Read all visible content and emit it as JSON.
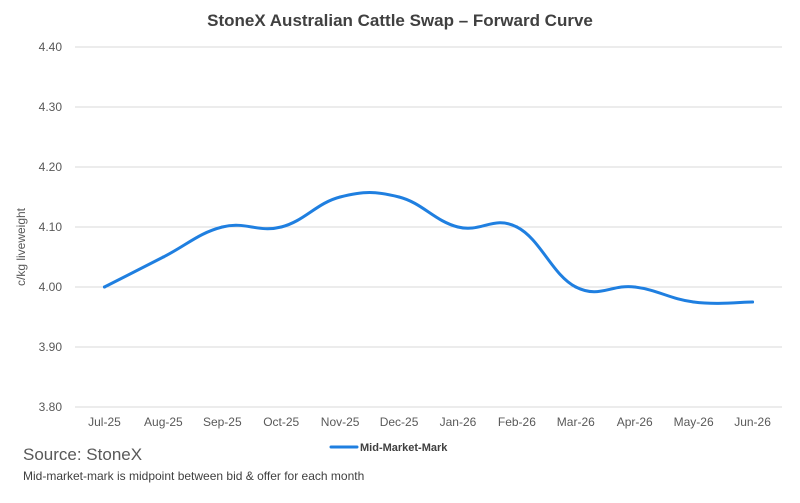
{
  "chart_data": {
    "type": "line",
    "title": "StoneX Australian Cattle Swap – Forward Curve",
    "ylabel": "c/kg liveweight",
    "xlabel": "",
    "categories": [
      "Jul-25",
      "Aug-25",
      "Sep-25",
      "Oct-25",
      "Nov-25",
      "Dec-25",
      "Jan-26",
      "Feb-26",
      "Mar-26",
      "Apr-26",
      "May-26",
      "Jun-26"
    ],
    "series": [
      {
        "name": "Mid-Market-Mark",
        "color": "#1f7fe0",
        "values": [
          4.0,
          4.05,
          4.1,
          4.1,
          4.15,
          4.15,
          4.1,
          4.1,
          4.0,
          4.0,
          3.975,
          3.975
        ]
      }
    ],
    "ylim": [
      3.8,
      4.4
    ],
    "yticks": [
      "3.80",
      "3.90",
      "4.00",
      "4.10",
      "4.20",
      "4.30",
      "4.40"
    ],
    "grid": true,
    "smooth": true,
    "legend": "bottom-center"
  },
  "footer": {
    "source": "Source: StoneX",
    "note": "Mid-market-mark is midpoint between bid & offer for each month"
  }
}
